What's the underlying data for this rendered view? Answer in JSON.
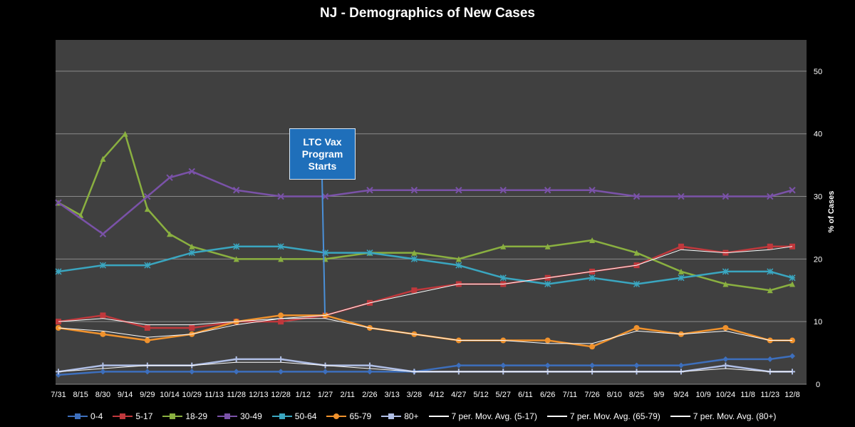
{
  "chart_data": {
    "type": "line",
    "title": "NJ - Demographics of New Cases",
    "ylabel": "% of Cases",
    "ylim": [
      0,
      55
    ],
    "yticks": [
      0,
      10,
      20,
      30,
      40,
      50
    ],
    "x_tick_labels": [
      "7/31",
      "8/15",
      "8/30",
      "9/14",
      "9/29",
      "10/14",
      "10/29",
      "11/13",
      "11/28",
      "12/13",
      "12/28",
      "1/12",
      "1/27",
      "2/11",
      "2/26",
      "3/13",
      "3/28",
      "4/12",
      "4/27",
      "5/12",
      "5/27",
      "6/11",
      "6/26",
      "7/11",
      "7/26",
      "8/10",
      "8/25",
      "9/9",
      "9/24",
      "10/9",
      "10/24",
      "11/8",
      "11/23",
      "12/8"
    ],
    "grid": true,
    "legend_position": "bottom",
    "annotation": {
      "text": [
        "LTC Vax",
        "Program",
        "Starts"
      ],
      "at_x": "1/27"
    },
    "series": [
      {
        "name": "0-4",
        "color": "#3d6fbd",
        "marker": "diamond",
        "x": [
          "7/31",
          "8/30",
          "9/29",
          "10/29",
          "11/28",
          "12/28",
          "1/27",
          "2/26",
          "3/28",
          "4/27",
          "5/27",
          "6/26",
          "7/26",
          "8/25",
          "9/24",
          "10/24",
          "11/23",
          "12/8"
        ],
        "values": [
          1.5,
          2.0,
          2.0,
          2.0,
          2.0,
          2.0,
          2.0,
          2.0,
          2.0,
          3.0,
          3.0,
          3.0,
          3.0,
          3.0,
          3.0,
          4.0,
          4.0,
          4.5
        ]
      },
      {
        "name": "5-17",
        "color": "#c0383c",
        "marker": "square",
        "x": [
          "7/31",
          "8/30",
          "9/29",
          "10/29",
          "11/28",
          "12/28",
          "1/27",
          "2/26",
          "3/28",
          "4/27",
          "5/27",
          "6/26",
          "7/26",
          "8/25",
          "9/24",
          "10/24",
          "11/23",
          "12/8"
        ],
        "values": [
          10,
          11,
          9,
          9,
          10,
          10,
          11,
          13,
          15,
          16,
          16,
          17,
          18,
          19,
          22,
          21,
          22,
          22
        ]
      },
      {
        "name": "18-29",
        "color": "#8ab040",
        "marker": "triangle",
        "x": [
          "7/31",
          "8/15",
          "8/30",
          "9/14",
          "9/29",
          "10/14",
          "10/29",
          "11/28",
          "12/28",
          "1/27",
          "2/26",
          "3/28",
          "4/27",
          "5/27",
          "6/26",
          "7/26",
          "8/25",
          "9/24",
          "10/24",
          "11/23",
          "12/8"
        ],
        "values": [
          29,
          27,
          36,
          40,
          28,
          24,
          22,
          20,
          20,
          20,
          21,
          21,
          20,
          22,
          22,
          23,
          21,
          18,
          16,
          15,
          16
        ]
      },
      {
        "name": "30-49",
        "color": "#7a52a8",
        "marker": "x",
        "x": [
          "7/31",
          "8/30",
          "9/29",
          "10/14",
          "10/29",
          "11/28",
          "12/28",
          "1/27",
          "2/26",
          "3/28",
          "4/27",
          "5/27",
          "6/26",
          "7/26",
          "8/25",
          "9/24",
          "10/24",
          "11/23",
          "12/8"
        ],
        "values": [
          29,
          24,
          30,
          33,
          34,
          31,
          30,
          30,
          31,
          31,
          31,
          31,
          31,
          31,
          30,
          30,
          30,
          30,
          31
        ]
      },
      {
        "name": "50-64",
        "color": "#3aa6c0",
        "marker": "star",
        "x": [
          "7/31",
          "8/30",
          "9/29",
          "10/29",
          "11/28",
          "12/28",
          "1/27",
          "2/26",
          "3/28",
          "4/27",
          "5/27",
          "6/26",
          "7/26",
          "8/25",
          "9/24",
          "10/24",
          "11/23",
          "12/8"
        ],
        "values": [
          18,
          19,
          19,
          21,
          22,
          22,
          21,
          21,
          20,
          19,
          17,
          16,
          17,
          16,
          17,
          18,
          18,
          17
        ]
      },
      {
        "name": "65-79",
        "color": "#f0922d",
        "marker": "circle",
        "x": [
          "7/31",
          "8/30",
          "9/29",
          "10/29",
          "11/28",
          "12/28",
          "1/27",
          "2/26",
          "3/28",
          "4/27",
          "5/27",
          "6/26",
          "7/26",
          "8/25",
          "9/24",
          "10/24",
          "11/23",
          "12/8"
        ],
        "values": [
          9,
          8,
          7,
          8,
          10,
          11,
          11,
          9,
          8,
          7,
          7,
          7,
          6,
          9,
          8,
          9,
          7,
          7
        ]
      },
      {
        "name": "80+",
        "color": "#b0bfe6",
        "marker": "plus",
        "x": [
          "7/31",
          "8/30",
          "9/29",
          "10/29",
          "11/28",
          "12/28",
          "1/27",
          "2/26",
          "3/28",
          "4/27",
          "5/27",
          "6/26",
          "7/26",
          "8/25",
          "9/24",
          "10/24",
          "11/23",
          "12/8"
        ],
        "values": [
          2,
          3,
          3,
          3,
          4,
          4,
          3,
          3,
          2,
          2,
          2,
          2,
          2,
          2,
          2,
          3,
          2,
          2
        ]
      },
      {
        "name": "7 per. Mov. Avg. (5-17)",
        "color": "#ffffff",
        "marker": "none",
        "x": [
          "7/31",
          "8/30",
          "9/29",
          "10/29",
          "11/28",
          "12/28",
          "1/27",
          "2/26",
          "3/28",
          "4/27",
          "5/27",
          "6/26",
          "7/26",
          "8/25",
          "9/24",
          "10/24",
          "11/23",
          "12/8"
        ],
        "values": [
          10,
          10.5,
          9.5,
          9.5,
          10,
          10.5,
          11,
          13,
          14.5,
          16,
          16,
          17,
          18,
          19,
          21.5,
          21,
          21.5,
          22
        ]
      },
      {
        "name": "7 per. Mov. Avg. (65-79)",
        "color": "#ffffff",
        "marker": "none",
        "x": [
          "7/31",
          "8/30",
          "9/29",
          "10/29",
          "11/28",
          "12/28",
          "1/27",
          "2/26",
          "3/28",
          "4/27",
          "5/27",
          "6/26",
          "7/26",
          "8/25",
          "9/24",
          "10/24",
          "11/23",
          "12/8"
        ],
        "values": [
          9,
          8.5,
          7.5,
          8,
          9.5,
          10.5,
          10.5,
          9,
          8,
          7,
          7,
          6.5,
          6.5,
          8.5,
          8,
          8.5,
          7,
          7
        ]
      },
      {
        "name": "7 per. Mov. Avg. (80+)",
        "color": "#ffffff",
        "marker": "none",
        "x": [
          "7/31",
          "8/30",
          "9/29",
          "10/29",
          "11/28",
          "12/28",
          "1/27",
          "2/26",
          "3/28",
          "4/27",
          "5/27",
          "6/26",
          "7/26",
          "8/25",
          "9/24",
          "10/24",
          "11/23",
          "12/8"
        ],
        "values": [
          2,
          2.5,
          3,
          3,
          3.5,
          3.5,
          3,
          2.5,
          2,
          2,
          2,
          2,
          2,
          2,
          2,
          2.5,
          2,
          2
        ]
      }
    ]
  }
}
